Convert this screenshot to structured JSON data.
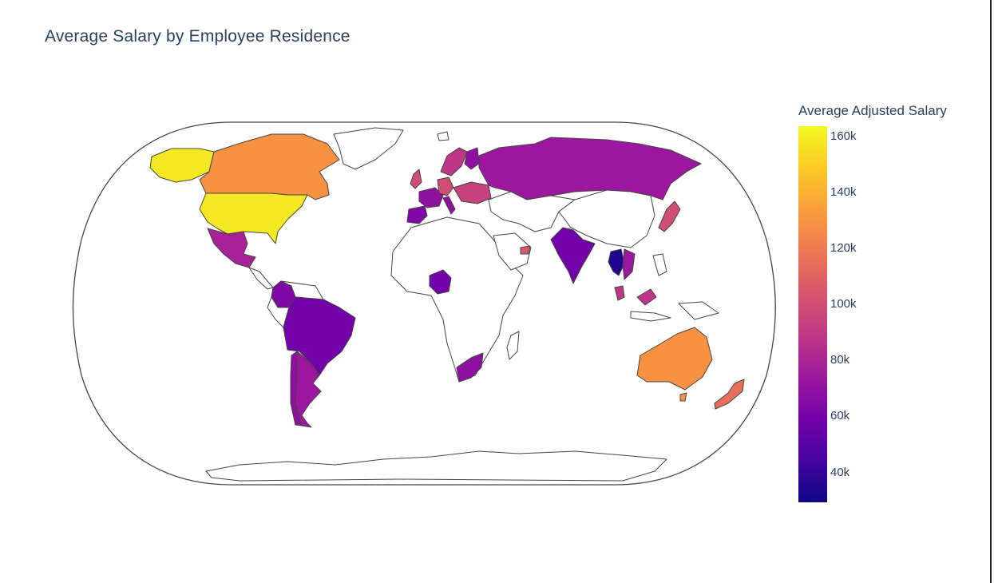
{
  "title": "Average Salary by Employee Residence",
  "colorbar": {
    "title": "Average Adjusted Salary",
    "ticks": [
      "160k",
      "140k",
      "120k",
      "100k",
      "80k",
      "60k",
      "40k"
    ],
    "colorscale": [
      "#0d0887",
      "#46039f",
      "#7201a8",
      "#9c179e",
      "#bd3786",
      "#d8576b",
      "#ed7953",
      "#fb9f3a",
      "#fdca26",
      "#f0f921"
    ]
  },
  "chart_data": {
    "type": "choropleth",
    "projection": "natural earth",
    "value_range": [
      30000,
      165000
    ],
    "regions": [
      {
        "name": "United States",
        "value": 160000
      },
      {
        "name": "Alaska",
        "value": 160000
      },
      {
        "name": "Canada",
        "value": 130000
      },
      {
        "name": "Greenland",
        "value": null
      },
      {
        "name": "Mexico",
        "value": 80000
      },
      {
        "name": "Colombia",
        "value": 65000
      },
      {
        "name": "Brazil",
        "value": 60000
      },
      {
        "name": "Argentina",
        "value": 75000
      },
      {
        "name": "Chile",
        "value": 70000
      },
      {
        "name": "United Kingdom",
        "value": 100000
      },
      {
        "name": "France",
        "value": 70000
      },
      {
        "name": "Spain",
        "value": 65000
      },
      {
        "name": "Germany",
        "value": 100000
      },
      {
        "name": "Scandinavia",
        "value": 90000
      },
      {
        "name": "Finland",
        "value": 70000
      },
      {
        "name": "Eastern Europe",
        "value": 95000
      },
      {
        "name": "Russia",
        "value": 75000
      },
      {
        "name": "Japan",
        "value": 100000
      },
      {
        "name": "China",
        "value": null
      },
      {
        "name": "India",
        "value": 60000
      },
      {
        "name": "Thailand",
        "value": 35000
      },
      {
        "name": "Vietnam",
        "value": 75000
      },
      {
        "name": "Malaysia",
        "value": 90000
      },
      {
        "name": "Philippines",
        "value": null
      },
      {
        "name": "Nigeria",
        "value": 60000
      },
      {
        "name": "South Africa",
        "value": 70000
      },
      {
        "name": "United Arab Emirates",
        "value": 105000
      },
      {
        "name": "Australia",
        "value": 130000
      },
      {
        "name": "New Zealand",
        "value": 115000
      }
    ]
  }
}
